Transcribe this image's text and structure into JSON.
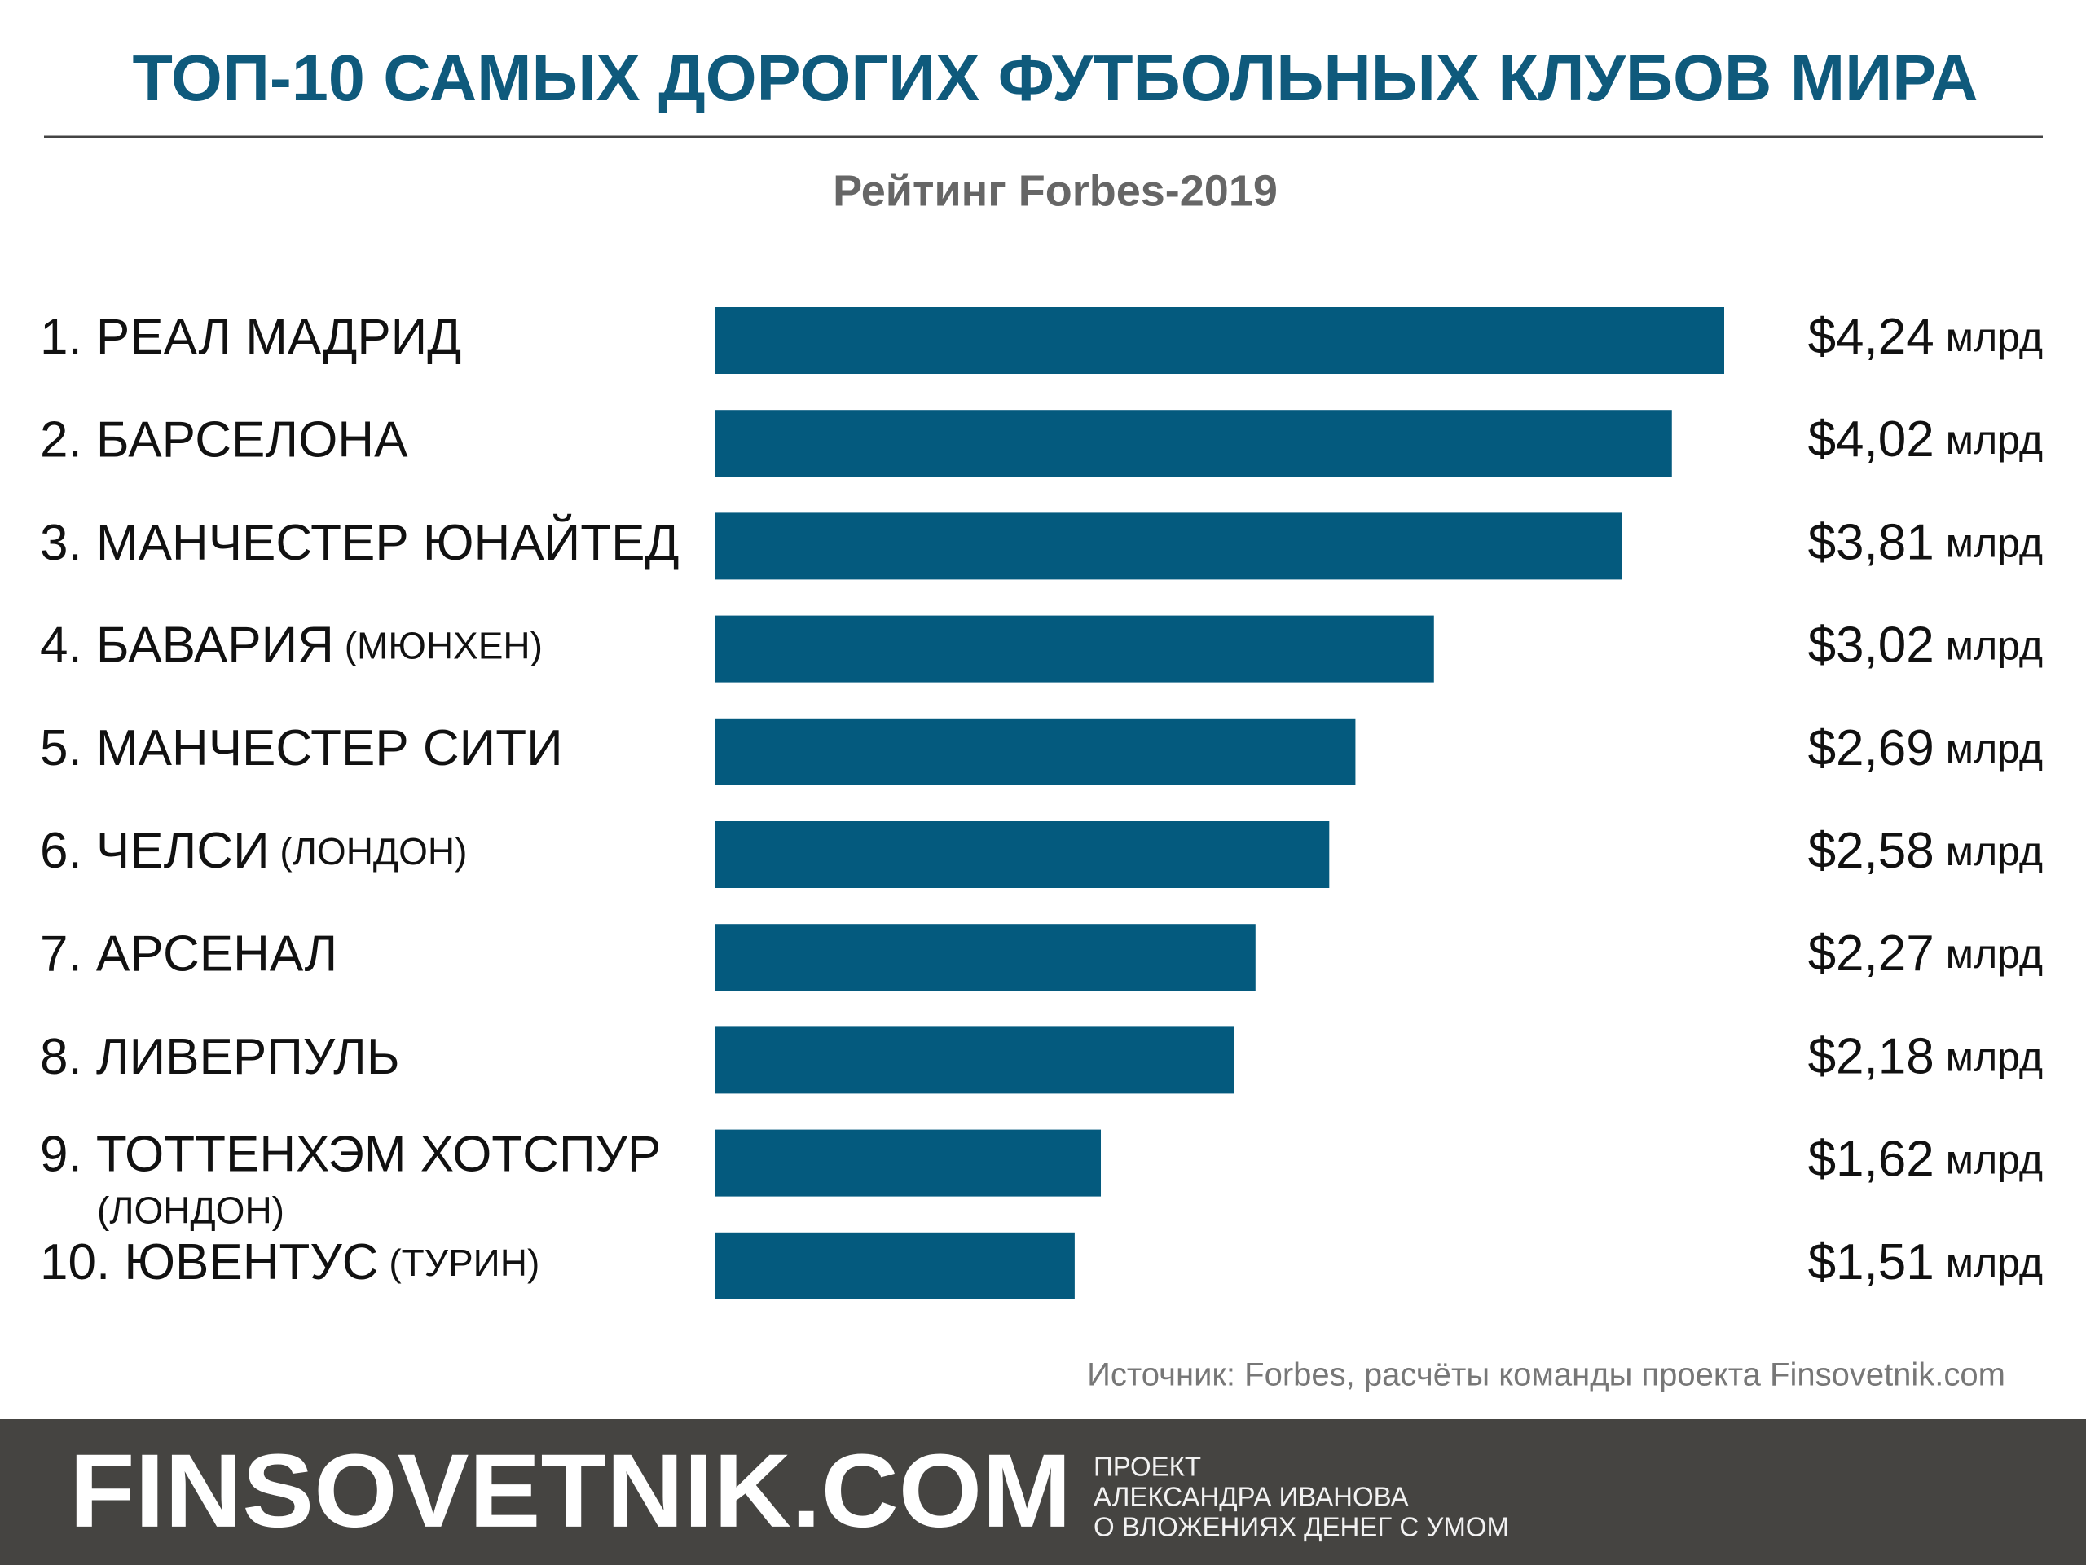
{
  "chart_data": {
    "type": "barh",
    "title": "ТОП-10 САМЫХ ДОРОГИХ ФУТБОЛЬНЫХ КЛУБОВ МИРА",
    "subtitle": "Рейтинг Forbes-2019",
    "categories": [
      "1. РЕАЛ МАДРИД",
      "2. БАРСЕЛОНА",
      "3. МАНЧЕСТЕР ЮНАЙТЕД",
      "4. БАВАРИЯ (МЮНХЕН)",
      "5. МАНЧЕСТЕР СИТИ",
      "6. ЧЕЛСИ (ЛОНДОН)",
      "7. АРСЕНАЛ",
      "8. ЛИВЕРПУЛЬ",
      "9. ТОТТЕНХЭМ ХОТСПУР (ЛОНДОН)",
      "10. ЮВЕНТУС (ТУРИН)"
    ],
    "values": [
      4.24,
      4.02,
      3.81,
      3.02,
      2.69,
      2.58,
      2.27,
      2.18,
      1.62,
      1.51
    ],
    "value_labels": [
      "$4,24 млрд",
      "$4,02 млрд",
      "$3,81 млрд",
      "$3,02 млрд",
      "$2,69 млрд",
      "$2,58 млрд",
      "$2,27 млрд",
      "$2,18 млрд",
      "$1,62 млрд",
      "$1,51 млрд"
    ],
    "color": "#045a7e",
    "source": "Источник: Forbes, расчёты команды проекта Finsovetnik.com"
  },
  "footer": {
    "brand": "FINSOVETNIK.COM",
    "lines": [
      "ПРОЕКТ",
      "АЛЕКСАНДРА ИВАНОВА",
      "О ВЛОЖЕНИЯХ ДЕНЕГ С УМОМ"
    ]
  }
}
